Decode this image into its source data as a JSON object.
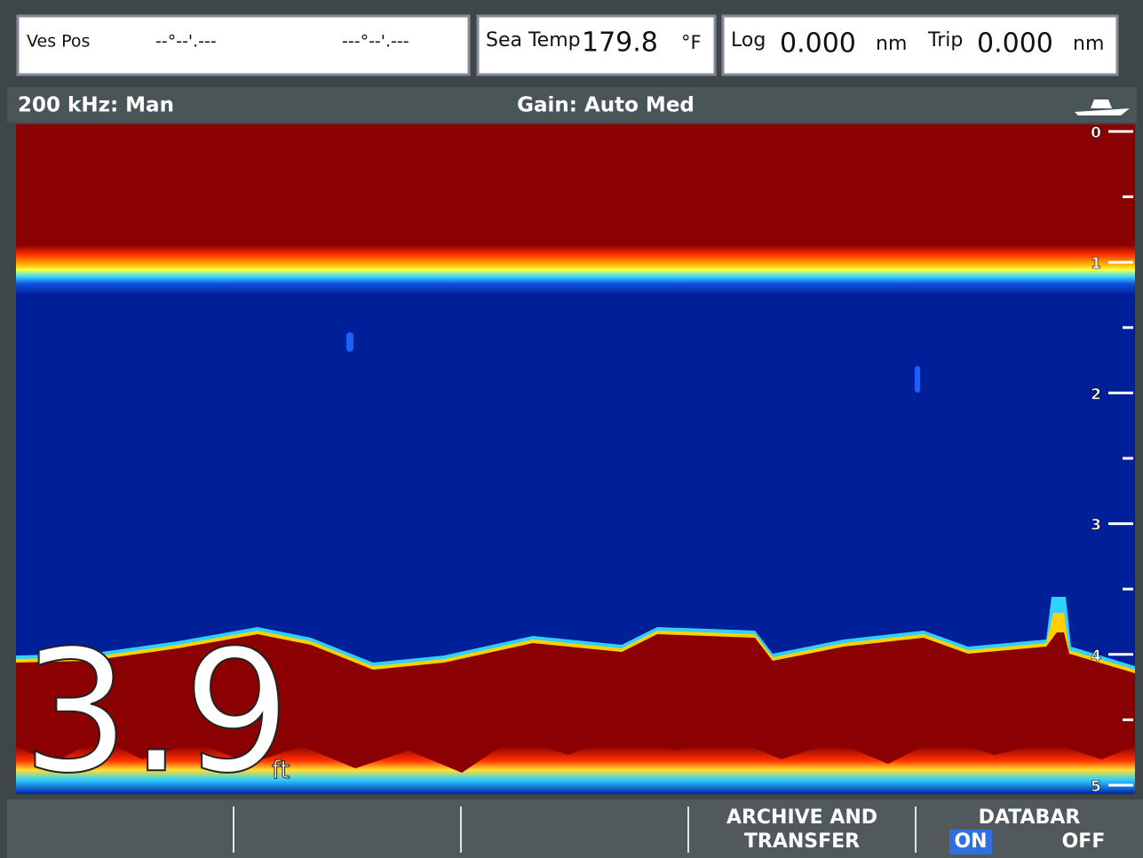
{
  "databar": {
    "vessel_position": {
      "label": "Ves Pos",
      "latitude": "--°--'.---",
      "longitude": "---°--'.---"
    },
    "sea_temp": {
      "label": "Sea Temp",
      "value": "179.8",
      "unit": "°F"
    },
    "log": {
      "label": "Log",
      "value": "0.000",
      "unit": "nm"
    },
    "trip": {
      "label": "Trip",
      "value": "0.000",
      "unit": "nm"
    }
  },
  "status": {
    "frequency": "200 kHz: Man",
    "gain": "Gain: Auto Med"
  },
  "depth": {
    "value": "3.9",
    "unit": "ft"
  },
  "depth_scale": [
    0,
    1,
    2,
    3,
    4,
    5
  ],
  "softkeys": [
    {
      "label_lines": [
        "ARCHIVE AND",
        "TRANSFER"
      ]
    },
    {
      "label": "DATABAR",
      "options": [
        "ON",
        "OFF"
      ]
    }
  ]
}
